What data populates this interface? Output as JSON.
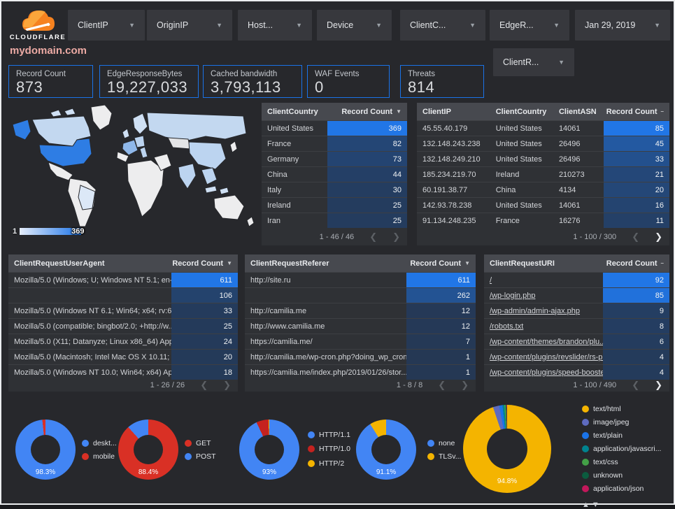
{
  "header": {
    "logo_text": "CLOUDFLARE",
    "filters": [
      {
        "label": "ClientIP"
      },
      {
        "label": "OriginIP"
      },
      {
        "label": "Host..."
      },
      {
        "label": "Device"
      },
      {
        "label": "ClientC..."
      },
      {
        "label": "EdgeR..."
      }
    ],
    "date_filter": "Jan 29, 2019",
    "second_row_filter": "ClientR...",
    "site_title": "mydomain.com"
  },
  "scorecards": [
    {
      "label": "Record Count",
      "value": "873"
    },
    {
      "label": "EdgeResponseBytes",
      "value": "19,227,033"
    },
    {
      "label": "Cached bandwidth",
      "value": "3,793,113"
    },
    {
      "label": "WAF Events",
      "value": "0"
    },
    {
      "label": "Threats",
      "value": "814"
    }
  ],
  "map": {
    "legend_min": "1",
    "legend_max": "369"
  },
  "tables": {
    "client_country": {
      "columns": [
        "ClientCountry",
        "Record Count"
      ],
      "sort": "▼",
      "max": 369,
      "rows": [
        {
          "cells": [
            "United States"
          ],
          "count": 369
        },
        {
          "cells": [
            "France"
          ],
          "count": 82
        },
        {
          "cells": [
            "Germany"
          ],
          "count": 73
        },
        {
          "cells": [
            "China"
          ],
          "count": 44
        },
        {
          "cells": [
            "Italy"
          ],
          "count": 30
        },
        {
          "cells": [
            "Ireland"
          ],
          "count": 25
        },
        {
          "cells": [
            "Iran"
          ],
          "count": 25
        }
      ],
      "pagination": "1 - 46 / 46",
      "prev_enabled": false,
      "next_enabled": false
    },
    "client_ip": {
      "columns": [
        "ClientIP",
        "ClientCountry",
        "ClientASN",
        "Record Count"
      ],
      "sort": "–",
      "max": 85,
      "rows": [
        {
          "cells": [
            "45.55.40.179",
            "United States",
            "14061"
          ],
          "count": 85
        },
        {
          "cells": [
            "132.148.243.238",
            "United States",
            "26496"
          ],
          "count": 45
        },
        {
          "cells": [
            "132.148.249.210",
            "United States",
            "26496"
          ],
          "count": 33
        },
        {
          "cells": [
            "185.234.219.70",
            "Ireland",
            "210273"
          ],
          "count": 21
        },
        {
          "cells": [
            "60.191.38.77",
            "China",
            "4134"
          ],
          "count": 20
        },
        {
          "cells": [
            "142.93.78.238",
            "United States",
            "14061"
          ],
          "count": 16
        },
        {
          "cells": [
            "91.134.248.235",
            "France",
            "16276"
          ],
          "count": 11
        }
      ],
      "pagination": "1 - 100 / 300",
      "prev_enabled": false,
      "next_enabled": true
    },
    "user_agent": {
      "columns": [
        "ClientRequestUserAgent",
        "Record Count"
      ],
      "sort": "▼",
      "max": 611,
      "rows": [
        {
          "cells": [
            "Mozilla/5.0 (Windows; U; Windows NT 5.1; en-U..."
          ],
          "count": 611
        },
        {
          "cells": [
            ""
          ],
          "count": 106
        },
        {
          "cells": [
            "Mozilla/5.0 (Windows NT 6.1; Win64; x64; rv:64..."
          ],
          "count": 33
        },
        {
          "cells": [
            "Mozilla/5.0 (compatible; bingbot/2.0; +http://w..."
          ],
          "count": 25
        },
        {
          "cells": [
            "Mozilla/5.0 (X11; Datanyze; Linux x86_64) Appl..."
          ],
          "count": 24
        },
        {
          "cells": [
            "Mozilla/5.0 (Macintosh; Intel Mac OS X 10.11; r..."
          ],
          "count": 20
        },
        {
          "cells": [
            "Mozilla/5.0 (Windows NT 10.0; Win64; x64) App..."
          ],
          "count": 18
        }
      ],
      "pagination": "1 - 26 / 26",
      "prev_enabled": false,
      "next_enabled": false
    },
    "referer": {
      "columns": [
        "ClientRequestReferer",
        "Record Count"
      ],
      "sort": "▼",
      "max": 611,
      "rows": [
        {
          "cells": [
            "http://site.ru"
          ],
          "count": 611
        },
        {
          "cells": [
            ""
          ],
          "count": 262
        },
        {
          "cells": [
            "http://camilia.me"
          ],
          "count": 12
        },
        {
          "cells": [
            "http://www.camilia.me"
          ],
          "count": 12
        },
        {
          "cells": [
            "https://camilia.me/"
          ],
          "count": 7
        },
        {
          "cells": [
            "http://camilia.me/wp-cron.php?doing_wp_cron..."
          ],
          "count": 1
        },
        {
          "cells": [
            "https://camilia.me/index.php/2019/01/26/stor..."
          ],
          "count": 1
        }
      ],
      "pagination": "1 - 8 / 8",
      "prev_enabled": false,
      "next_enabled": false
    },
    "uri": {
      "columns": [
        "ClientRequestURI",
        "Record Count"
      ],
      "sort": "–",
      "max": 92,
      "links": true,
      "rows": [
        {
          "cells": [
            "/"
          ],
          "count": 92
        },
        {
          "cells": [
            "/wp-login.php"
          ],
          "count": 85
        },
        {
          "cells": [
            "/wp-admin/admin-ajax.php"
          ],
          "count": 9
        },
        {
          "cells": [
            "/robots.txt"
          ],
          "count": 8
        },
        {
          "cells": [
            "/wp-content/themes/brandon/plu..."
          ],
          "count": 6
        },
        {
          "cells": [
            "/wp-content/plugins/revslider/rs-p..."
          ],
          "count": 4
        },
        {
          "cells": [
            "/wp-content/plugins/speed-booste..."
          ],
          "count": 4
        }
      ],
      "pagination": "1 - 100 / 490",
      "prev_enabled": false,
      "next_enabled": true
    }
  },
  "donuts": [
    {
      "label": "98.3%",
      "slices": [
        {
          "label": "deskt...",
          "value": 98.3,
          "color": "#4285f4"
        },
        {
          "label": "mobile",
          "value": 1.7,
          "color": "#d93025"
        }
      ]
    },
    {
      "label": "88.4%",
      "slices": [
        {
          "label": "GET",
          "value": 88.4,
          "color": "#d93025"
        },
        {
          "label": "POST",
          "value": 11.6,
          "color": "#4285f4"
        }
      ]
    },
    {
      "label": "93%",
      "slices": [
        {
          "label": "HTTP/1.1",
          "value": 93,
          "color": "#4285f4"
        },
        {
          "label": "HTTP/1.0",
          "value": 6.6,
          "color": "#c5221f"
        },
        {
          "label": "HTTP/2",
          "value": 0.4,
          "color": "#f4b400"
        }
      ]
    },
    {
      "label": "91.1%",
      "slices": [
        {
          "label": "none",
          "value": 91.1,
          "color": "#4285f4"
        },
        {
          "label": "TLSv...",
          "value": 8.9,
          "color": "#f4b400"
        }
      ]
    },
    {
      "label": "94.8%",
      "slices": [
        {
          "label": "text/html",
          "value": 94.8,
          "color": "#f4b400"
        },
        {
          "label": "image/jpeg",
          "value": 2.3,
          "color": "#5e6bc0"
        },
        {
          "label": "text/plain",
          "value": 1.2,
          "color": "#1a73e8"
        },
        {
          "label": "application/javascri...",
          "value": 0.7,
          "color": "#00838f"
        },
        {
          "label": "text/css",
          "value": 0.5,
          "color": "#43a047"
        },
        {
          "label": "unknown",
          "value": 0.3,
          "color": "#0b5c3f"
        },
        {
          "label": "application/json",
          "value": 0.2,
          "color": "#c2185b"
        }
      ]
    }
  ],
  "legend_nav": "▲▼"
}
